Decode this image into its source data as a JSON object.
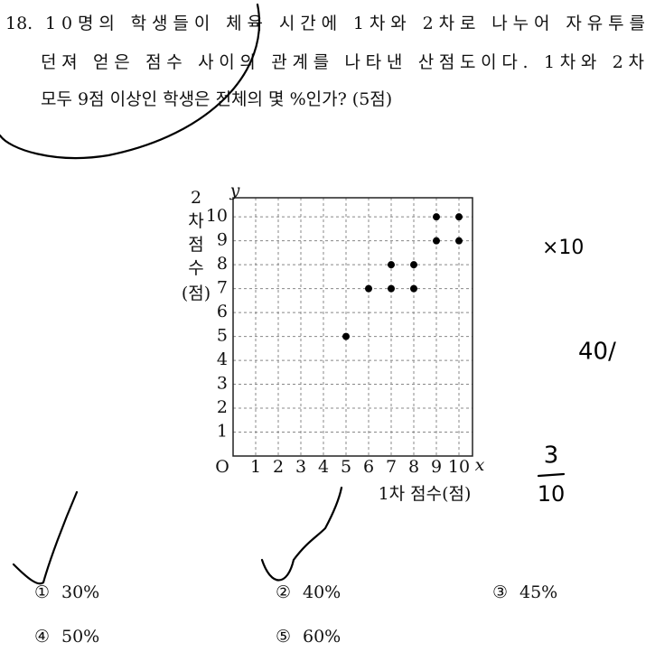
{
  "question": {
    "number": "18.",
    "lines": [
      "10명의 학생들이 체육 시간에 1차와 2차로 나누어 자유투를",
      "던져 얻은 점수 사이의 관계를 나타낸 산점도이다. 1차와 2차",
      "모두 9점 이상인 학생은 전체의 몇 %인가? (5점)"
    ]
  },
  "chart_data": {
    "type": "scatter",
    "x_label": "1차 점수(점)",
    "y_label_lines": [
      "2",
      "차",
      "점",
      "수",
      "(점)"
    ],
    "origin_label": "O",
    "x_axis_name": "x",
    "y_axis_name": "y",
    "x": [
      5,
      6,
      7,
      7,
      8,
      8,
      9,
      9,
      10,
      10
    ],
    "values": [
      5,
      7,
      7,
      8,
      7,
      8,
      9,
      10,
      9,
      10
    ],
    "color": "#000000",
    "xlim": [
      0,
      10.6
    ],
    "ylim": [
      0,
      10.8
    ],
    "xticks": [
      1,
      2,
      3,
      4,
      5,
      6,
      7,
      8,
      9,
      10
    ],
    "yticks": [
      1,
      2,
      3,
      4,
      5,
      6,
      7,
      8,
      9,
      10
    ],
    "grid": true
  },
  "choices": [
    {
      "marker": "①",
      "text": "30%"
    },
    {
      "marker": "②",
      "text": "40%"
    },
    {
      "marker": "③",
      "text": "45%"
    },
    {
      "marker": "④",
      "text": "50%"
    },
    {
      "marker": "⑤",
      "text": "60%"
    }
  ],
  "notes": [
    "×10",
    "40/",
    "3",
    "10"
  ]
}
